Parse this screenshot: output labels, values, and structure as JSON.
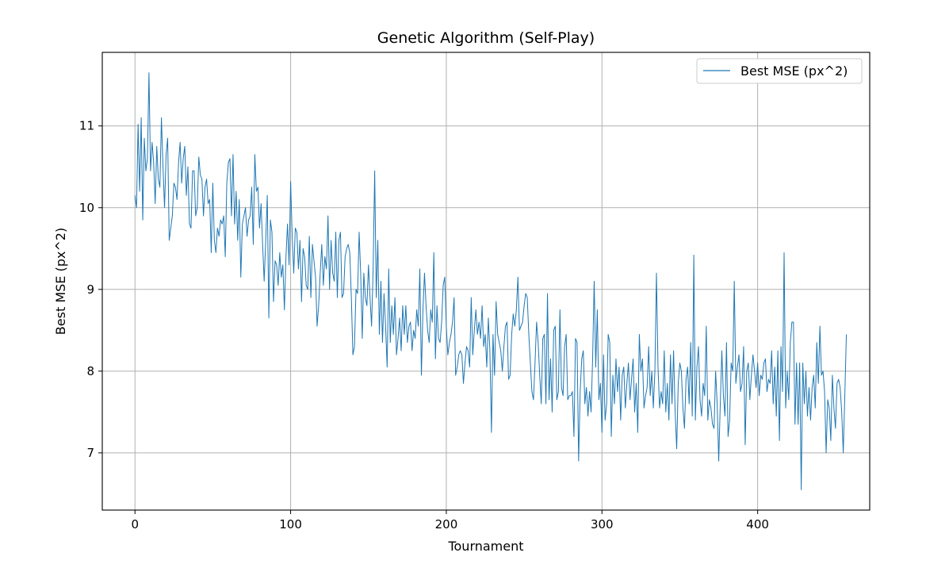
{
  "chart_data": {
    "type": "line",
    "title": "Genetic Algorithm (Self-Play)",
    "xlabel": "Tournament",
    "ylabel": "Best MSE (px^2)",
    "xlim": [
      -21,
      472
    ],
    "ylim": [
      6.3,
      11.9
    ],
    "xticks": [
      0,
      100,
      200,
      300,
      400
    ],
    "yticks": [
      7,
      8,
      9,
      10,
      11
    ],
    "grid": true,
    "legend_position": "top-right",
    "series": [
      {
        "name": "Best MSE (px^2)",
        "color": "#1f77b4",
        "x_start": 0,
        "x_step": 1,
        "values": [
          10.15,
          10.0,
          11.02,
          10.2,
          11.1,
          9.85,
          10.85,
          10.45,
          10.6,
          11.65,
          10.45,
          10.8,
          10.55,
          10.05,
          10.75,
          10.35,
          10.25,
          11.1,
          10.5,
          10.0,
          10.65,
          10.85,
          9.6,
          9.75,
          9.9,
          10.3,
          10.25,
          10.1,
          10.55,
          10.8,
          10.3,
          10.6,
          10.75,
          10.15,
          10.5,
          9.8,
          9.75,
          10.45,
          10.45,
          9.9,
          10.0,
          10.62,
          10.4,
          10.35,
          9.9,
          10.25,
          10.35,
          10.05,
          10.1,
          9.45,
          10.3,
          9.6,
          9.45,
          9.75,
          9.65,
          9.85,
          9.8,
          9.9,
          9.4,
          10.3,
          10.55,
          10.6,
          9.9,
          10.65,
          9.8,
          10.2,
          9.6,
          10.1,
          9.15,
          9.8,
          9.9,
          10.0,
          9.65,
          9.85,
          9.9,
          10.25,
          9.55,
          10.65,
          10.2,
          10.25,
          9.75,
          10.05,
          9.55,
          9.1,
          9.6,
          10.15,
          8.65,
          9.85,
          9.7,
          8.85,
          9.35,
          9.3,
          9.05,
          9.45,
          9.15,
          9.3,
          8.75,
          9.4,
          9.8,
          9.3,
          10.32,
          9.65,
          9.2,
          9.75,
          9.7,
          9.25,
          9.6,
          8.85,
          9.5,
          9.4,
          9.05,
          9.0,
          9.65,
          8.9,
          9.55,
          9.35,
          9.15,
          8.55,
          8.8,
          9.2,
          9.55,
          9.05,
          9.4,
          9.25,
          9.9,
          9.0,
          9.6,
          9.2,
          9.1,
          9.7,
          8.9,
          9.6,
          9.7,
          8.9,
          8.95,
          9.4,
          9.5,
          9.55,
          9.45,
          8.9,
          8.2,
          8.3,
          9.0,
          8.95,
          9.7,
          9.2,
          8.4,
          9.2,
          8.9,
          8.8,
          9.3,
          8.9,
          8.55,
          9.25,
          10.45,
          8.9,
          9.6,
          8.45,
          9.1,
          8.35,
          8.95,
          8.55,
          8.05,
          9.25,
          8.35,
          8.8,
          8.45,
          8.9,
          8.2,
          8.4,
          8.65,
          8.25,
          8.8,
          8.45,
          8.8,
          8.35,
          8.55,
          8.6,
          8.25,
          8.5,
          8.4,
          8.75,
          8.55,
          9.25,
          7.95,
          8.75,
          9.2,
          8.8,
          8.5,
          8.35,
          8.75,
          8.6,
          9.45,
          8.15,
          8.8,
          8.4,
          8.35,
          8.6,
          9.05,
          9.15,
          8.55,
          8.2,
          8.35,
          8.45,
          8.6,
          8.9,
          7.95,
          8.05,
          8.2,
          8.25,
          8.2,
          7.85,
          8.1,
          8.3,
          8.25,
          8.05,
          8.9,
          8.2,
          8.5,
          8.75,
          8.45,
          8.6,
          8.4,
          8.8,
          8.3,
          8.45,
          8.05,
          8.65,
          8.25,
          7.25,
          8.45,
          7.95,
          8.85,
          8.45,
          8.35,
          8.25,
          8.0,
          8.3,
          8.55,
          8.6,
          7.9,
          7.95,
          8.45,
          8.7,
          8.55,
          8.75,
          9.15,
          8.5,
          8.55,
          8.6,
          8.8,
          8.95,
          8.9,
          8.45,
          8.1,
          7.75,
          7.65,
          8.1,
          8.6,
          8.35,
          7.95,
          7.6,
          8.4,
          8.45,
          7.6,
          8.95,
          7.65,
          8.15,
          7.5,
          8.5,
          8.55,
          7.65,
          7.75,
          8.75,
          7.8,
          7.7,
          8.3,
          8.45,
          7.65,
          7.7,
          7.7,
          7.75,
          7.2,
          8.4,
          8.35,
          6.9,
          7.75,
          8.15,
          8.25,
          7.6,
          7.8,
          7.45,
          7.75,
          7.5,
          8.15,
          9.1,
          8.05,
          8.75,
          7.65,
          7.85,
          7.25,
          8.2,
          7.4,
          7.6,
          8.45,
          8.35,
          7.2,
          7.95,
          7.6,
          8.15,
          7.75,
          8.05,
          7.4,
          7.95,
          8.05,
          7.55,
          7.85,
          8.1,
          7.65,
          7.9,
          8.15,
          7.5,
          7.85,
          7.25,
          8.45,
          8.0,
          8.15,
          7.55,
          7.7,
          7.8,
          8.3,
          7.7,
          8.0,
          7.55,
          8.0,
          9.2,
          8.05,
          7.55,
          7.75,
          7.6,
          8.25,
          7.5,
          7.85,
          7.4,
          8.2,
          7.6,
          8.25,
          7.5,
          7.05,
          7.85,
          8.1,
          8.0,
          7.55,
          7.3,
          7.9,
          8.05,
          7.6,
          8.35,
          7.45,
          9.42,
          7.4,
          8.05,
          8.3,
          7.65,
          7.45,
          7.85,
          7.7,
          8.55,
          7.4,
          7.65,
          7.55,
          7.35,
          7.3,
          8.0,
          7.6,
          6.9,
          7.6,
          8.25,
          7.7,
          7.45,
          8.35,
          7.2,
          7.4,
          8.1,
          8.0,
          9.1,
          7.85,
          8.05,
          8.2,
          7.75,
          7.85,
          8.3,
          7.1,
          8.0,
          8.1,
          7.65,
          7.95,
          8.2,
          8.0,
          7.8,
          8.1,
          7.7,
          7.95,
          7.9,
          8.1,
          8.15,
          7.75,
          7.9,
          7.85,
          8.25,
          7.6,
          8.05,
          7.45,
          8.25,
          7.15,
          8.3,
          7.75,
          9.45,
          7.55,
          8.0,
          7.65,
          8.35,
          8.6,
          8.6,
          7.35,
          8.1,
          7.35,
          8.1,
          6.55,
          8.1,
          7.6,
          8.0,
          7.45,
          7.8,
          7.4,
          7.8,
          7.95,
          7.55,
          8.35,
          7.85,
          8.55,
          7.95,
          8.0,
          7.75,
          7.0,
          7.65,
          7.55,
          7.15,
          7.95,
          7.55,
          7.3,
          7.85,
          7.9,
          7.8,
          7.5,
          7.0,
          7.7,
          8.45
        ]
      }
    ]
  }
}
